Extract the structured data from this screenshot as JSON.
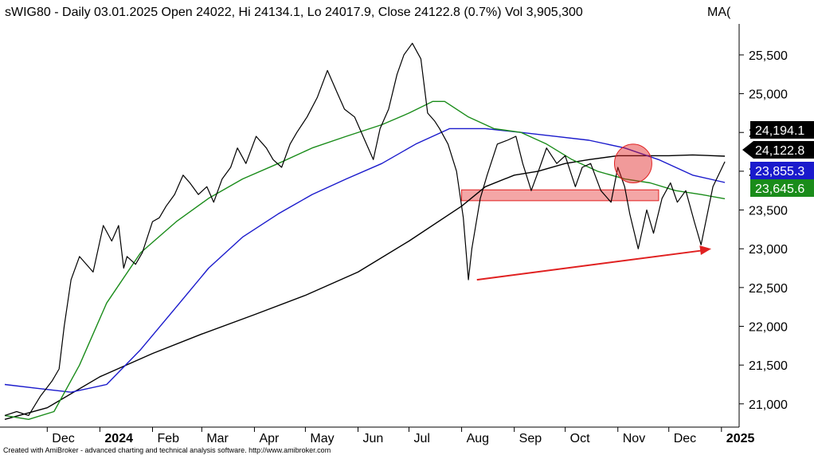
{
  "header": {
    "symbol": "sWIG80",
    "title": "sWIG80 - Daily 03.01.2025 Open 24022, Hi 24134.1, Lo 24017.9, Close 24122.8 (0.7%) Vol 3,905,300",
    "ma_label": "MA(",
    "ma_color": "#1a9a1a"
  },
  "footer": {
    "text": "Created with AmiBroker - advanced charting and technical analysis software. http://www.amibroker.com"
  },
  "colors": {
    "price": "#000000",
    "ma_short": "#1a8c1a",
    "ma_mid": "#1a1acc",
    "ma_long": "#000000",
    "annotation_red": "#e02020",
    "zone_fill": "#f4a6a6"
  },
  "chart_data": {
    "type": "line",
    "title": "sWIG80 - Daily 03.01.2025 Open 24022, Hi 24134.1, Lo 24017.9, Close 24122.8 (0.7%) Vol 3,905,300",
    "xlabel": "",
    "ylabel": "",
    "ylim": [
      20700,
      25900
    ],
    "y_ticks": [
      21000,
      21500,
      22000,
      22500,
      23000,
      23500,
      24000,
      24500,
      25000,
      25500
    ],
    "y_tick_labels": [
      "21,000",
      "21,500",
      "22,000",
      "22,500",
      "23,000",
      "23,500",
      "24,000",
      "24,500",
      "25,000",
      "25,500"
    ],
    "x_ticks": [
      {
        "label": "Dec",
        "date": "2023-12-01",
        "bold": false
      },
      {
        "label": "2024",
        "date": "2024-01-01",
        "bold": true
      },
      {
        "label": "Feb",
        "date": "2024-02-01",
        "bold": false
      },
      {
        "label": "Mar",
        "date": "2024-03-01",
        "bold": false
      },
      {
        "label": "Apr",
        "date": "2024-04-01",
        "bold": false
      },
      {
        "label": "May",
        "date": "2024-05-01",
        "bold": false
      },
      {
        "label": "Jun",
        "date": "2024-06-01",
        "bold": false
      },
      {
        "label": "Jul",
        "date": "2024-07-01",
        "bold": false
      },
      {
        "label": "Aug",
        "date": "2024-08-01",
        "bold": false
      },
      {
        "label": "Sep",
        "date": "2024-09-01",
        "bold": false
      },
      {
        "label": "Oct",
        "date": "2024-10-01",
        "bold": false
      },
      {
        "label": "Nov",
        "date": "2024-11-01",
        "bold": false
      },
      {
        "label": "Dec",
        "date": "2024-12-01",
        "bold": false
      },
      {
        "label": "2025",
        "date": "2025-01-01",
        "bold": true
      }
    ],
    "x_range": [
      "2023-11-06",
      "2025-01-10"
    ],
    "series": [
      {
        "key": "price",
        "color": "#000000",
        "x": [
          "2023-11-06",
          "2023-11-13",
          "2023-11-20",
          "2023-11-27",
          "2023-12-04",
          "2023-12-08",
          "2023-12-11",
          "2023-12-15",
          "2023-12-20",
          "2023-12-28",
          "2024-01-03",
          "2024-01-08",
          "2024-01-12",
          "2024-01-15",
          "2024-01-17",
          "2024-01-22",
          "2024-01-26",
          "2024-02-01",
          "2024-02-05",
          "2024-02-09",
          "2024-02-14",
          "2024-02-19",
          "2024-02-23",
          "2024-02-28",
          "2024-03-04",
          "2024-03-08",
          "2024-03-13",
          "2024-03-18",
          "2024-03-22",
          "2024-03-27",
          "2024-04-02",
          "2024-04-08",
          "2024-04-12",
          "2024-04-17",
          "2024-04-22",
          "2024-04-26",
          "2024-05-02",
          "2024-05-08",
          "2024-05-14",
          "2024-05-20",
          "2024-05-24",
          "2024-05-30",
          "2024-06-05",
          "2024-06-10",
          "2024-06-14",
          "2024-06-19",
          "2024-06-24",
          "2024-06-28",
          "2024-07-03",
          "2024-07-08",
          "2024-07-12",
          "2024-07-16",
          "2024-07-19",
          "2024-07-24",
          "2024-07-29",
          "2024-08-02",
          "2024-08-05",
          "2024-08-07",
          "2024-08-12",
          "2024-08-16",
          "2024-08-22",
          "2024-08-28",
          "2024-09-02",
          "2024-09-06",
          "2024-09-11",
          "2024-09-16",
          "2024-09-20",
          "2024-09-26",
          "2024-10-01",
          "2024-10-07",
          "2024-10-11",
          "2024-10-16",
          "2024-10-22",
          "2024-10-28",
          "2024-11-01",
          "2024-11-05",
          "2024-11-08",
          "2024-11-13",
          "2024-11-18",
          "2024-11-22",
          "2024-11-27",
          "2024-12-02",
          "2024-12-06",
          "2024-12-11",
          "2024-12-16",
          "2024-12-20",
          "2024-12-27",
          "2025-01-03"
        ],
        "values": [
          20850,
          20900,
          20850,
          21100,
          21300,
          21450,
          22000,
          22600,
          22900,
          22700,
          23300,
          23100,
          23300,
          22750,
          22900,
          22800,
          22950,
          23350,
          23400,
          23550,
          23700,
          23950,
          23850,
          23700,
          23800,
          23600,
          23900,
          24050,
          24300,
          24100,
          24450,
          24300,
          24150,
          24050,
          24350,
          24500,
          24700,
          24950,
          25300,
          25000,
          24800,
          24700,
          24400,
          24150,
          24550,
          24800,
          25250,
          25500,
          25650,
          25450,
          24750,
          24650,
          24550,
          24350,
          24000,
          23400,
          22600,
          23000,
          23650,
          23950,
          24350,
          24400,
          24450,
          24100,
          23750,
          24050,
          24300,
          24100,
          24200,
          23800,
          24050,
          24100,
          23750,
          23600,
          24050,
          23800,
          23450,
          23000,
          23500,
          23200,
          23650,
          23850,
          23600,
          23750,
          23350,
          23050,
          23800,
          24122.8
        ]
      },
      {
        "key": "ma_short",
        "color": "#1a8c1a",
        "x": [
          "2023-11-06",
          "2023-11-20",
          "2023-12-05",
          "2023-12-20",
          "2024-01-05",
          "2024-01-25",
          "2024-02-15",
          "2024-03-05",
          "2024-03-25",
          "2024-04-15",
          "2024-05-05",
          "2024-05-25",
          "2024-06-15",
          "2024-07-01",
          "2024-07-15",
          "2024-07-22",
          "2024-08-05",
          "2024-08-20",
          "2024-09-05",
          "2024-09-20",
          "2024-10-05",
          "2024-10-20",
          "2024-11-05",
          "2024-11-20",
          "2024-12-05",
          "2024-12-20",
          "2025-01-03"
        ],
        "values": [
          20850,
          20800,
          20900,
          21500,
          22300,
          22950,
          23350,
          23650,
          23900,
          24100,
          24300,
          24450,
          24600,
          24750,
          24900,
          24900,
          24700,
          24550,
          24500,
          24350,
          24150,
          24000,
          23900,
          23850,
          23750,
          23700,
          23645.6
        ]
      },
      {
        "key": "ma_mid",
        "color": "#1a1acc",
        "x": [
          "2023-11-06",
          "2023-11-25",
          "2023-12-15",
          "2024-01-05",
          "2024-01-25",
          "2024-02-15",
          "2024-03-05",
          "2024-03-25",
          "2024-04-15",
          "2024-05-05",
          "2024-05-25",
          "2024-06-15",
          "2024-07-05",
          "2024-07-25",
          "2024-08-15",
          "2024-09-05",
          "2024-09-25",
          "2024-10-15",
          "2024-11-05",
          "2024-11-25",
          "2024-12-15",
          "2025-01-03"
        ],
        "values": [
          21250,
          21200,
          21150,
          21250,
          21700,
          22250,
          22750,
          23150,
          23450,
          23700,
          23900,
          24100,
          24350,
          24550,
          24550,
          24500,
          24450,
          24400,
          24300,
          24150,
          23950,
          23855.3
        ]
      },
      {
        "key": "ma_long",
        "color": "#000000",
        "x": [
          "2023-11-06",
          "2023-12-01",
          "2024-01-01",
          "2024-02-01",
          "2024-03-01",
          "2024-04-01",
          "2024-05-01",
          "2024-06-01",
          "2024-07-01",
          "2024-08-01",
          "2024-08-15",
          "2024-09-01",
          "2024-09-15",
          "2024-10-01",
          "2024-10-15",
          "2024-11-01",
          "2024-11-15",
          "2024-12-01",
          "2024-12-15",
          "2025-01-03"
        ],
        "values": [
          20800,
          20950,
          21350,
          21650,
          21900,
          22150,
          22400,
          22700,
          23100,
          23550,
          23800,
          23950,
          24000,
          24100,
          24150,
          24200,
          24200,
          24200,
          24210,
          24194.1
        ]
      }
    ],
    "last_value_labels": [
      {
        "key": "ma_long",
        "text": "24,194.1",
        "value": 24194.1,
        "bg": "#000000",
        "arrow": false
      },
      {
        "key": "price",
        "text": "24,122.8",
        "value": 24122.8,
        "bg": "#000000",
        "arrow": true
      },
      {
        "key": "ma_mid",
        "text": "23,855.3",
        "value": 23855.3,
        "bg": "#1a1acc",
        "arrow": false
      },
      {
        "key": "ma_short",
        "text": "23,645.6",
        "value": 23645.6,
        "bg": "#1a8c1a",
        "arrow": false
      }
    ],
    "annotations": {
      "support_zone": {
        "x_start": "2024-08-01",
        "x_end": "2024-11-25",
        "y_low": 23620,
        "y_high": 23760
      },
      "ellipse": {
        "x_center": "2024-11-10",
        "y_center": 24100,
        "x_half_days": 11,
        "y_half": 250
      },
      "trend_arrow": {
        "from_date": "2024-08-10",
        "from_value": 22600,
        "to_date": "2024-12-26",
        "to_value": 23000
      }
    },
    "grid": false,
    "legend": "none"
  }
}
